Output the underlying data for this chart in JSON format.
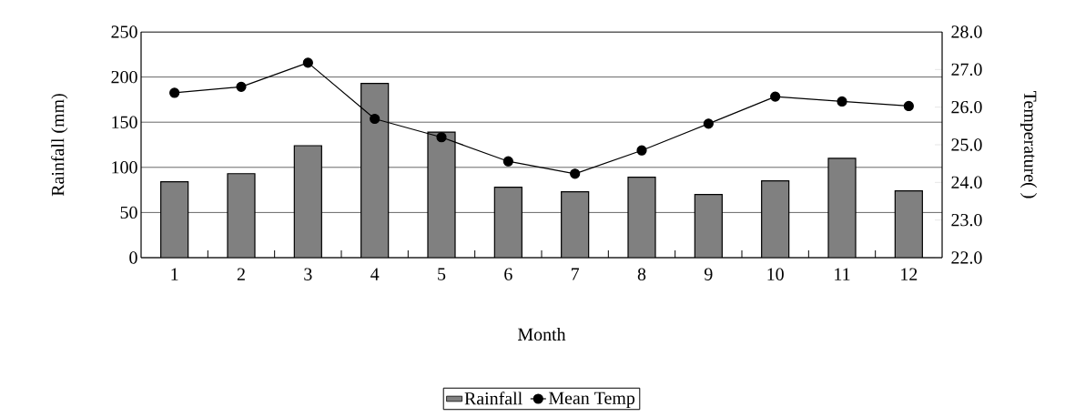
{
  "chart_data": {
    "type": "bar",
    "xlabel": "Month",
    "ylabel": "Rainfall (mm)",
    "y2label": "Temperature(  )",
    "categories": [
      "1",
      "2",
      "3",
      "4",
      "5",
      "6",
      "7",
      "8",
      "9",
      "10",
      "11",
      "12"
    ],
    "series": [
      {
        "name": "Rainfall",
        "color": "#808080",
        "values": [
          84,
          93,
          124,
          193,
          139,
          78,
          73,
          89,
          70,
          85,
          110,
          74
        ]
      },
      {
        "name": "Mean Temp",
        "type": "line",
        "axis": "y2",
        "color": "#000000",
        "values": [
          26.38,
          26.54,
          27.18,
          25.69,
          25.2,
          24.56,
          24.23,
          24.85,
          25.56,
          26.28,
          26.15,
          26.03
        ]
      }
    ],
    "ylim": [
      0,
      250
    ],
    "yticks": [
      0,
      50,
      100,
      150,
      200,
      250
    ],
    "y2lim": [
      22,
      28
    ],
    "y2ticks": [
      {
        "value": 22,
        "label": "22.0"
      },
      {
        "value": 23,
        "label": "23.0"
      },
      {
        "value": 24,
        "label": "24.0"
      },
      {
        "value": 25,
        "label": "25.0"
      },
      {
        "value": 26,
        "label": "26.0"
      },
      {
        "value": 27,
        "label": "27.0"
      },
      {
        "value": 28,
        "label": "28.0"
      }
    ],
    "grid": "y",
    "legend": "bottom",
    "marker": "circle"
  }
}
